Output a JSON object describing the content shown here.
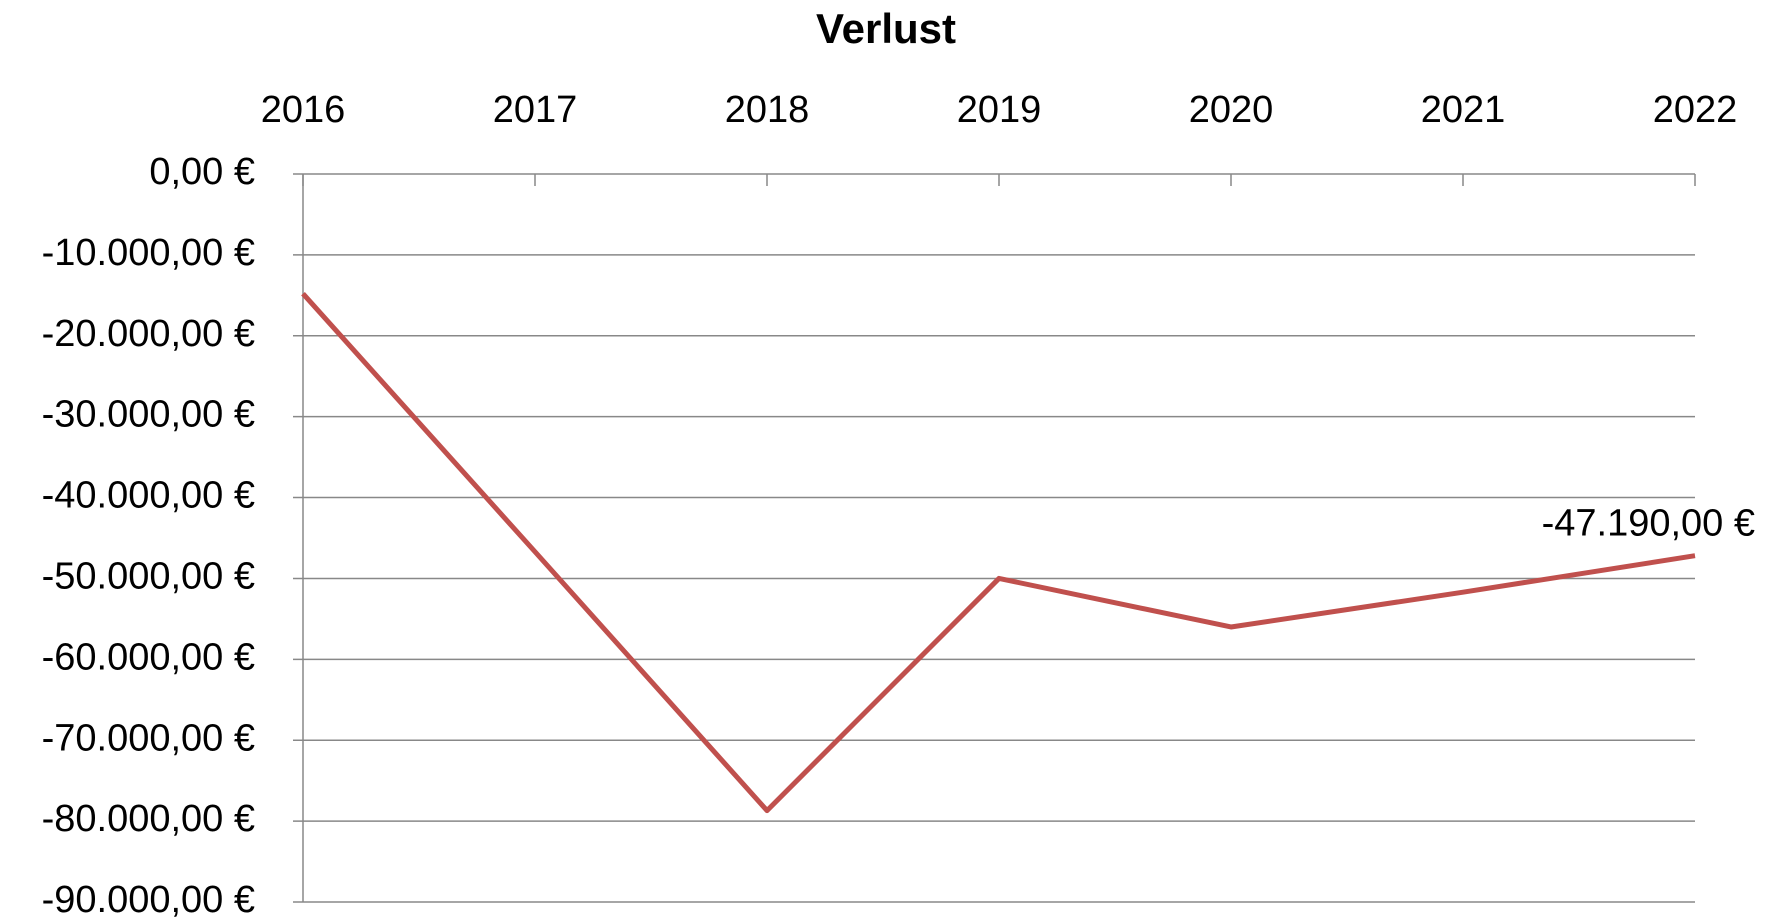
{
  "chart_data": {
    "type": "line",
    "title": "Verlust",
    "categories": [
      "2016",
      "2017",
      "2018",
      "2019",
      "2020",
      "2021",
      "2022"
    ],
    "series": [
      {
        "name": "Verlust",
        "color": "#c0504d",
        "values": [
          -14800,
          -46700,
          -78700,
          -50000,
          -56000,
          -51700,
          -47190
        ],
        "value_labels": [
          null,
          null,
          null,
          null,
          null,
          null,
          "-47.190,00 €"
        ]
      }
    ],
    "ylim": [
      -90000,
      0
    ],
    "yticks": [
      {
        "value": 0,
        "label": "0,00 €"
      },
      {
        "value": -10000,
        "label": "-10.000,00 €"
      },
      {
        "value": -20000,
        "label": "-20.000,00 €"
      },
      {
        "value": -30000,
        "label": "-30.000,00 €"
      },
      {
        "value": -40000,
        "label": "-40.000,00 €"
      },
      {
        "value": -50000,
        "label": "-50.000,00 €"
      },
      {
        "value": -60000,
        "label": "-60.000,00 €"
      },
      {
        "value": -70000,
        "label": "-70.000,00 €"
      },
      {
        "value": -80000,
        "label": "-80.000,00 €"
      },
      {
        "value": -90000,
        "label": "-90.000,00 €"
      }
    ],
    "grid": true
  }
}
